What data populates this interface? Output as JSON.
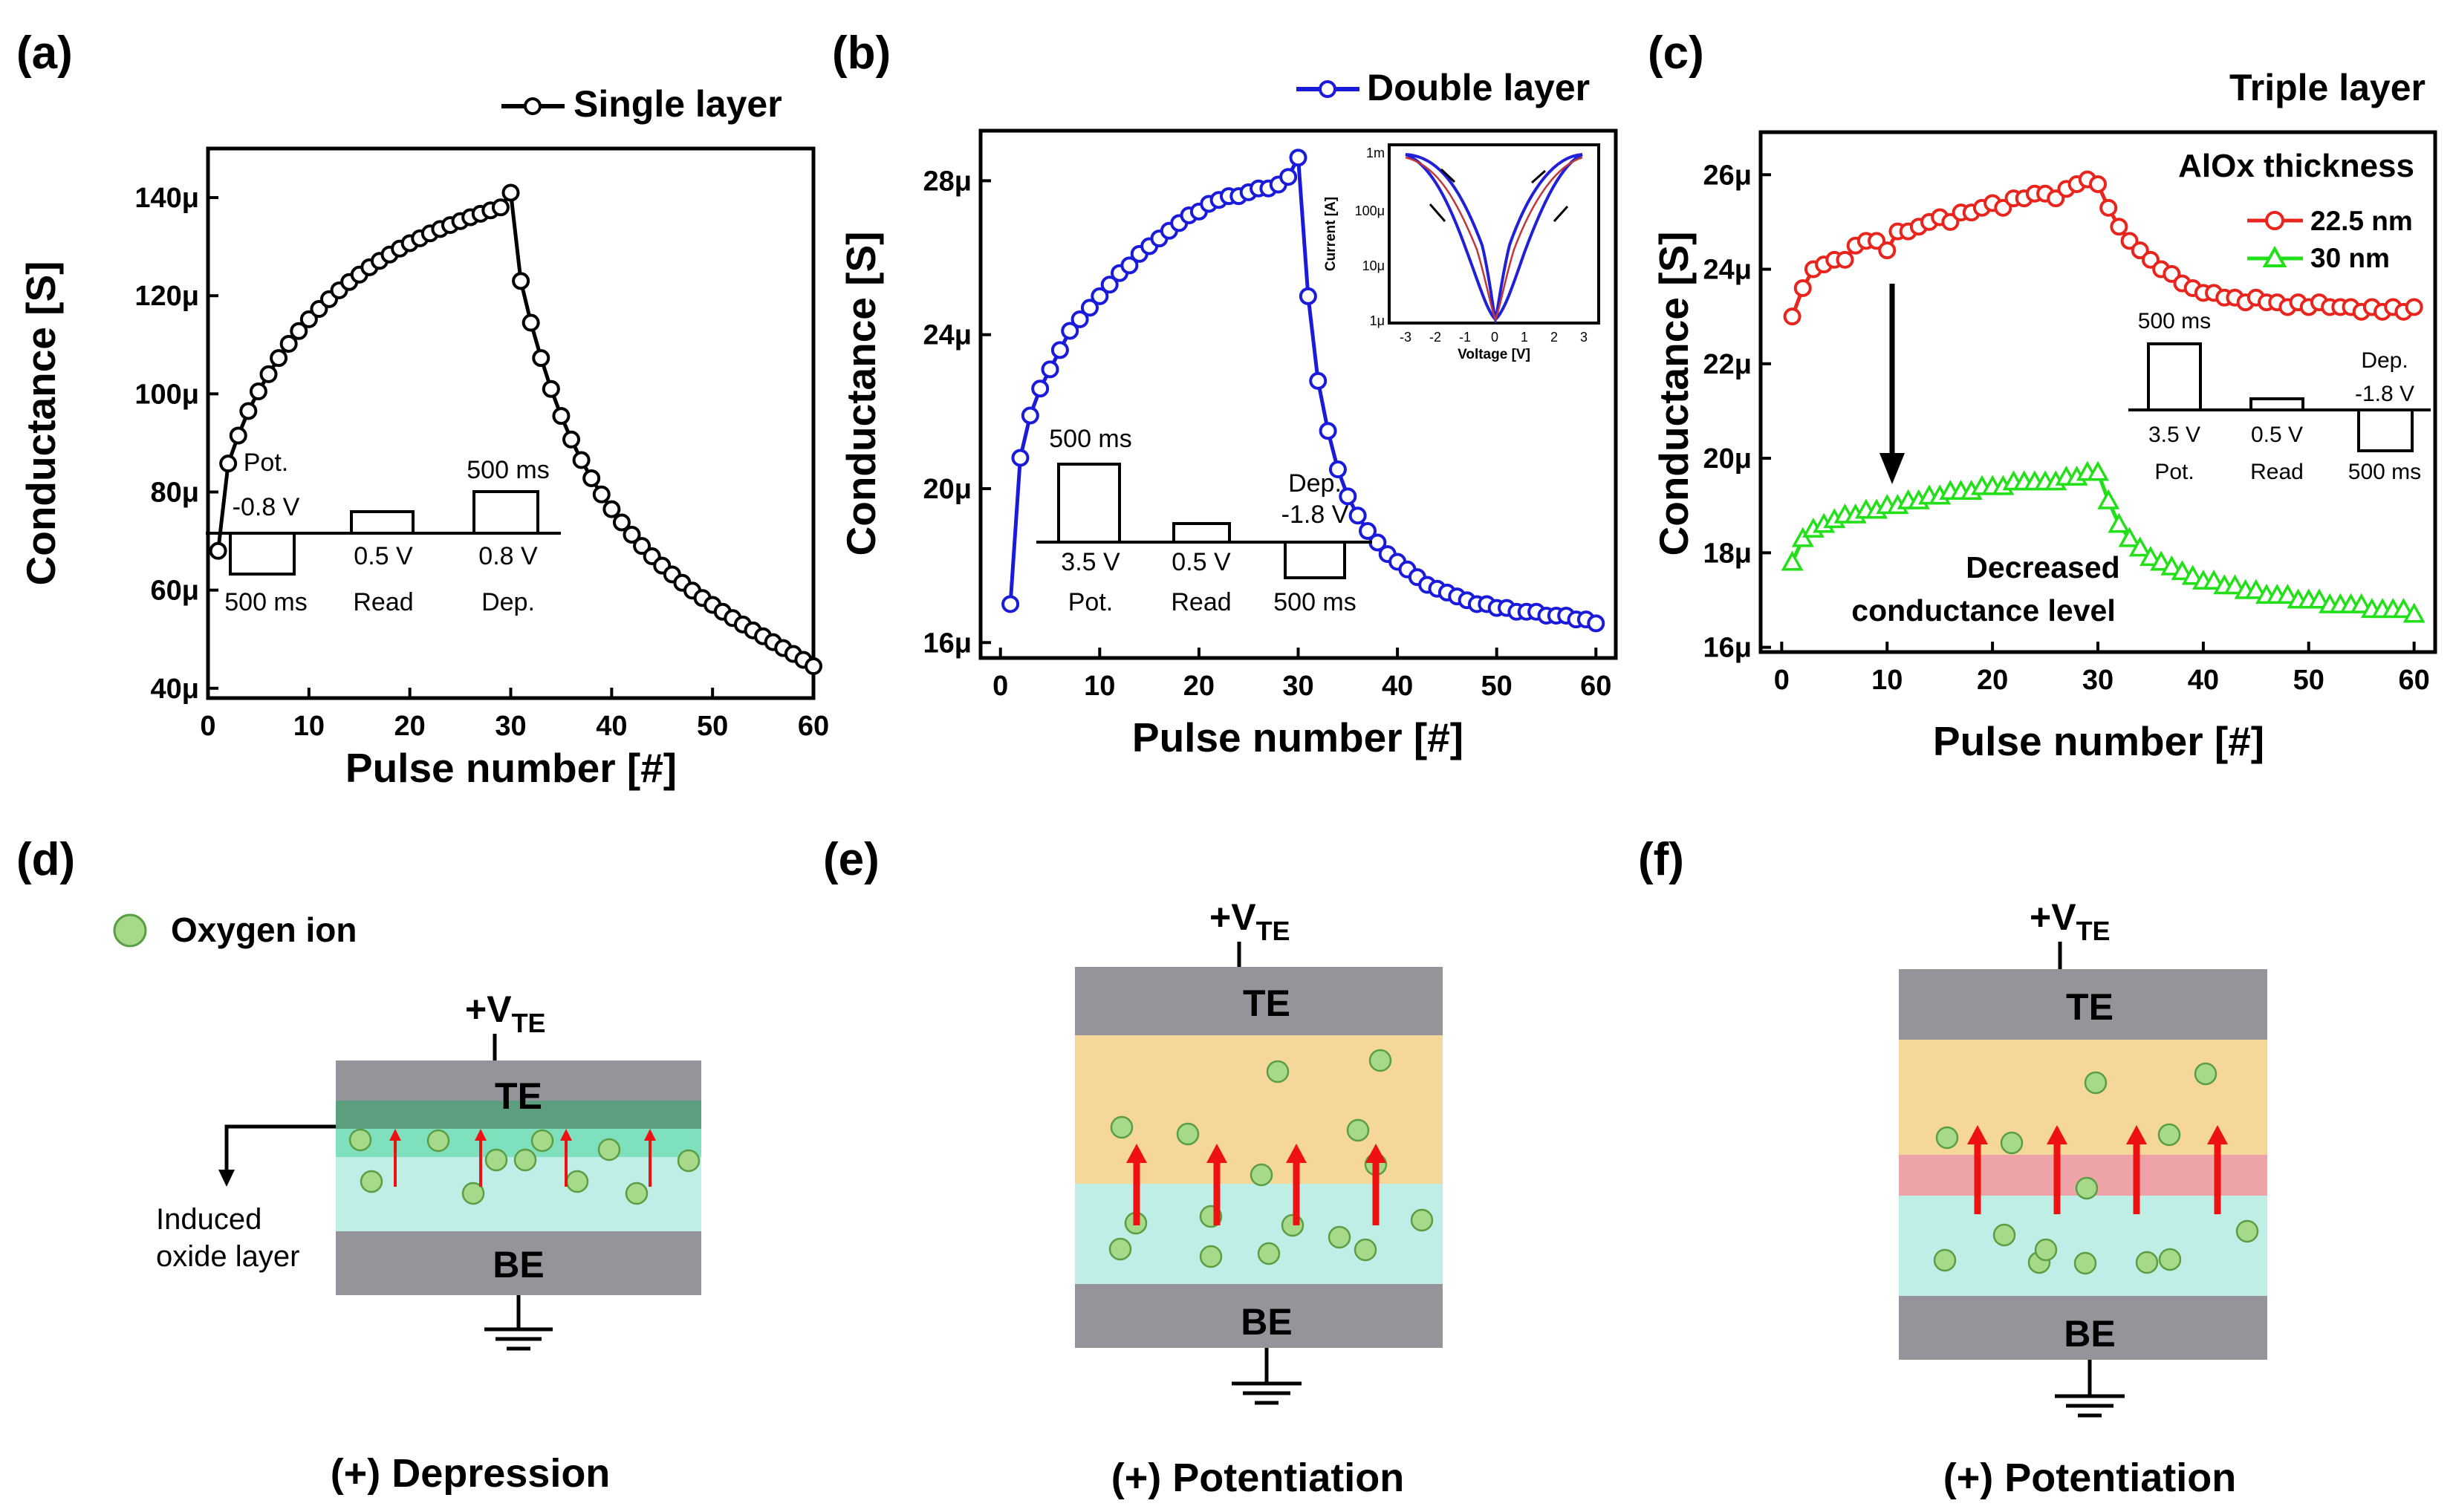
{
  "chart_data": [
    {
      "panel": "(a)",
      "type": "line",
      "legend": "Single layer",
      "xlabel": "Pulse number [#]",
      "ylabel": "Conductance [S]",
      "xlim": [
        0,
        60
      ],
      "ylim": [
        38,
        150
      ],
      "xticks": [
        "0",
        "10",
        "20",
        "30",
        "40",
        "50",
        "60"
      ],
      "yticks": [
        "40μ",
        "60μ",
        "80μ",
        "100μ",
        "120μ",
        "140μ"
      ],
      "ytick_values": [
        40,
        60,
        80,
        100,
        120,
        140
      ],
      "series": [
        {
          "name": "Single layer",
          "color": "#000000",
          "marker": "circle",
          "x": [
            1,
            2,
            3,
            4,
            5,
            6,
            7,
            8,
            9,
            10,
            11,
            12,
            13,
            14,
            15,
            16,
            17,
            18,
            19,
            20,
            21,
            22,
            23,
            24,
            25,
            26,
            27,
            28,
            29,
            30,
            31,
            32,
            33,
            34,
            35,
            36,
            37,
            38,
            39,
            40,
            41,
            42,
            43,
            44,
            45,
            46,
            47,
            48,
            49,
            50,
            51,
            52,
            53,
            54,
            55,
            56,
            57,
            58,
            59,
            60
          ],
          "values": [
            68,
            85.8,
            91.5,
            96.5,
            100.5,
            104,
            107.3,
            110.2,
            112.8,
            115.2,
            117.3,
            119.3,
            121.1,
            122.8,
            124.3,
            125.8,
            127.1,
            128.4,
            129.6,
            130.7,
            131.7,
            132.7,
            133.6,
            134.4,
            135.2,
            136,
            136.7,
            137.4,
            138,
            141,
            123,
            114.5,
            107.3,
            101,
            95.5,
            90.7,
            86.5,
            82.8,
            79.5,
            76.5,
            73.8,
            71.3,
            69,
            66.9,
            65,
            63.2,
            61.5,
            59.9,
            58.4,
            57,
            55.6,
            54.3,
            53,
            51.8,
            50.6,
            49.4,
            48.2,
            47,
            45.8,
            44.5
          ]
        }
      ],
      "inset": {
        "labels": [
          "Pot.",
          "-0.8 V",
          "500 ms",
          "0.5 V",
          "Read",
          "500 ms",
          "0.8 V",
          "Dep."
        ]
      }
    },
    {
      "panel": "(b)",
      "type": "line",
      "legend": "Double layer",
      "xlabel": "Pulse number [#]",
      "ylabel": "Conductance [S]",
      "xlim": [
        -2,
        62
      ],
      "ylim": [
        15.6,
        29.3
      ],
      "xticks": [
        "0",
        "10",
        "20",
        "30",
        "40",
        "50",
        "60"
      ],
      "yticks": [
        "16μ",
        "20μ",
        "24μ",
        "28μ"
      ],
      "ytick_values": [
        16,
        20,
        24,
        28
      ],
      "series": [
        {
          "name": "Double layer",
          "color": "#1a1adb",
          "marker": "circle",
          "x": [
            1,
            2,
            3,
            4,
            5,
            6,
            7,
            8,
            9,
            10,
            11,
            12,
            13,
            14,
            15,
            16,
            17,
            18,
            19,
            20,
            21,
            22,
            23,
            24,
            25,
            26,
            27,
            28,
            29,
            30,
            31,
            32,
            33,
            34,
            35,
            36,
            37,
            38,
            39,
            40,
            41,
            42,
            43,
            44,
            45,
            46,
            47,
            48,
            49,
            50,
            51,
            52,
            53,
            54,
            55,
            56,
            57,
            58,
            59,
            60
          ],
          "values": [
            17,
            20.8,
            21.9,
            22.6,
            23.1,
            23.6,
            24.1,
            24.4,
            24.7,
            25,
            25.3,
            25.6,
            25.8,
            26.1,
            26.3,
            26.5,
            26.7,
            26.9,
            27.1,
            27.2,
            27.4,
            27.5,
            27.6,
            27.6,
            27.7,
            27.8,
            27.8,
            27.9,
            28.1,
            28.6,
            25,
            22.8,
            21.5,
            20.5,
            19.8,
            19.3,
            18.9,
            18.6,
            18.3,
            18.1,
            17.9,
            17.7,
            17.5,
            17.4,
            17.3,
            17.2,
            17.1,
            17,
            17,
            16.9,
            16.9,
            16.8,
            16.8,
            16.8,
            16.7,
            16.7,
            16.7,
            16.6,
            16.6,
            16.5
          ]
        }
      ],
      "inset": {
        "labels": [
          "500 ms",
          "3.5 V",
          "Pot.",
          "0.5 V",
          "Read",
          "Dep.",
          "-1.8 V",
          "500 ms"
        ]
      },
      "iv_inset": {
        "xlabel": "Voltage [V]",
        "ylabel": "Current [A]",
        "xticks": [
          "-3",
          "-2",
          "-1",
          "0",
          "1",
          "2",
          "3"
        ],
        "yticks": [
          "1m",
          "100μ",
          "10μ",
          "1μ"
        ]
      }
    },
    {
      "panel": "(c)",
      "type": "line",
      "title": "Triple layer",
      "legend_title": "AlOx thickness",
      "xlabel": "Pulse number [#]",
      "ylabel": "Conductance [S]",
      "xlim": [
        -2,
        62
      ],
      "ylim": [
        15.9,
        26.9
      ],
      "xticks": [
        "0",
        "10",
        "20",
        "30",
        "40",
        "50",
        "60"
      ],
      "yticks": [
        "16μ",
        "18μ",
        "20μ",
        "22μ",
        "24μ",
        "26μ"
      ],
      "ytick_values": [
        16,
        18,
        20,
        22,
        24,
        26
      ],
      "series": [
        {
          "name": "22.5 nm",
          "color": "#e8241c",
          "marker": "circle",
          "x": [
            1,
            2,
            3,
            4,
            5,
            6,
            7,
            8,
            9,
            10,
            11,
            12,
            13,
            14,
            15,
            16,
            17,
            18,
            19,
            20,
            21,
            22,
            23,
            24,
            25,
            26,
            27,
            28,
            29,
            30,
            31,
            32,
            33,
            34,
            35,
            36,
            37,
            38,
            39,
            40,
            41,
            42,
            43,
            44,
            45,
            46,
            47,
            48,
            49,
            50,
            51,
            52,
            53,
            54,
            55,
            56,
            57,
            58,
            59,
            60
          ],
          "values": [
            23,
            23.6,
            24,
            24.1,
            24.2,
            24.2,
            24.5,
            24.6,
            24.6,
            24.4,
            24.8,
            24.8,
            24.9,
            25,
            25.1,
            25,
            25.2,
            25.2,
            25.3,
            25.4,
            25.3,
            25.5,
            25.5,
            25.6,
            25.6,
            25.5,
            25.7,
            25.8,
            25.9,
            25.8,
            25.3,
            24.9,
            24.6,
            24.4,
            24.2,
            24,
            23.9,
            23.7,
            23.6,
            23.5,
            23.5,
            23.4,
            23.4,
            23.3,
            23.4,
            23.3,
            23.3,
            23.2,
            23.3,
            23.2,
            23.3,
            23.2,
            23.2,
            23.2,
            23.1,
            23.2,
            23.1,
            23.2,
            23.1,
            23.2
          ]
        },
        {
          "name": "30 nm",
          "color": "#22e018",
          "marker": "triangle",
          "x": [
            1,
            2,
            3,
            4,
            5,
            6,
            7,
            8,
            9,
            10,
            11,
            12,
            13,
            14,
            15,
            16,
            17,
            18,
            19,
            20,
            21,
            22,
            23,
            24,
            25,
            26,
            27,
            28,
            29,
            30,
            31,
            32,
            33,
            34,
            35,
            36,
            37,
            38,
            39,
            40,
            41,
            42,
            43,
            44,
            45,
            46,
            47,
            48,
            49,
            50,
            51,
            52,
            53,
            54,
            55,
            56,
            57,
            58,
            59,
            60
          ],
          "values": [
            17.8,
            18.3,
            18.5,
            18.6,
            18.7,
            18.8,
            18.8,
            18.9,
            18.9,
            19,
            19,
            19.1,
            19.1,
            19.2,
            19.2,
            19.3,
            19.3,
            19.3,
            19.4,
            19.4,
            19.4,
            19.5,
            19.5,
            19.5,
            19.5,
            19.5,
            19.6,
            19.6,
            19.7,
            19.7,
            19.1,
            18.6,
            18.3,
            18.1,
            17.9,
            17.8,
            17.7,
            17.6,
            17.5,
            17.4,
            17.4,
            17.3,
            17.3,
            17.2,
            17.2,
            17.1,
            17.1,
            17.1,
            17,
            17,
            17,
            16.9,
            16.9,
            16.9,
            16.9,
            16.8,
            16.8,
            16.8,
            16.8,
            16.7
          ]
        }
      ],
      "annotation": [
        "Decreased",
        "conductance level"
      ],
      "inset": {
        "labels": [
          "500 ms",
          "3.5 V",
          "Pot.",
          "0.5 V",
          "Read",
          "Dep.",
          "-1.8 V",
          "500 ms"
        ]
      }
    }
  ],
  "panels": {
    "a": "(a)",
    "b": "(b)",
    "c": "(c)",
    "d": "(d)",
    "e": "(e)",
    "f": "(f)"
  },
  "diagrams": {
    "legend_label": "Oxygen ion",
    "vte_prefix": "+V",
    "vte_sub": "TE",
    "te": "TE",
    "be": "BE",
    "induced_line1": "Induced",
    "induced_line2": "oxide layer",
    "d_caption": "(+)  Depression",
    "e_caption": "(+)  Potentiation",
    "f_caption": "(+)  Potentiation"
  },
  "colors": {
    "electrode": "#95949b",
    "top_oxide": "#f5d899",
    "bottom_oxide": "#bfeee6",
    "middle_oxide": "#eda3a8",
    "induced_dark": "#5c9e7e",
    "induced_light": "#7fe0bd",
    "ion_fill": "#a6d98a",
    "ion_stroke": "#5a9e44",
    "arrow_red": "#ee1111"
  }
}
